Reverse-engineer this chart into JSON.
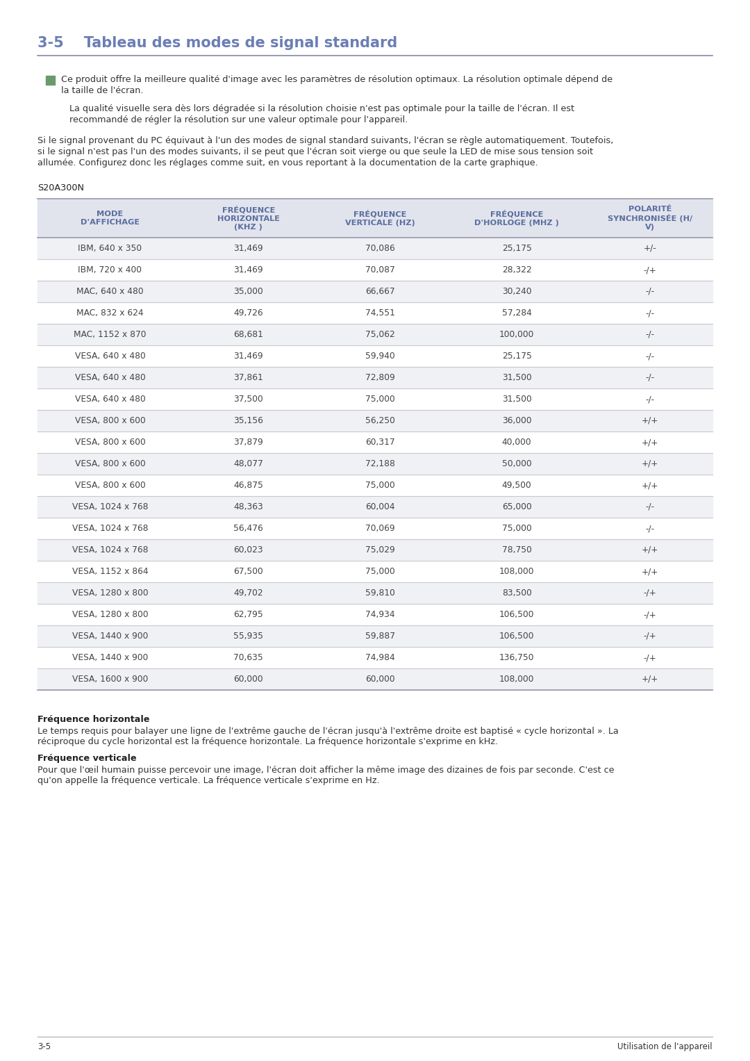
{
  "title_num": "3-5",
  "title_text": "Tableau des modes de signal standard",
  "title_color": "#6b7eb5",
  "bg_color": "#ffffff",
  "note_icon_color": "#6a9a6a",
  "note_text1a": "Ce produit offre la meilleure qualité d'image avec les paramètres de résolution optimaux. La résolution optimale dépend de",
  "note_text1b": "la taille de l'écran.",
  "note_text2a": "La qualité visuelle sera dès lors dégradée si la résolution choisie n'est pas optimale pour la taille de l'écran. Il est",
  "note_text2b": "recommandé de régler la résolution sur une valeur optimale pour l'appareil.",
  "para1": "Si le signal provenant du PC équivaut à l'un des modes de signal standard suivants, l'écran se règle automatiquement. Toutefois,",
  "para2": "si le signal n'est pas l'un des modes suivants, il se peut que l'écran soit vierge ou que seule la LED de mise sous tension soit",
  "para3": "allumée. Configurez donc les réglages comme suit, en vous reportant à la documentation de la carte graphique.",
  "model_label": "S20A300N",
  "col_headers": [
    "MODE\nD'AFFICHAGE",
    "FRÉQUENCE\nHORIZONTALE\n(KHZ )",
    "FRÉQUENCE\nVERTICALE (HZ)",
    "FRÉQUENCE\nD'HORLOGE (MHZ )",
    "POLARITÉ\nSYNCHRONISÉE (H/\nV)"
  ],
  "col_header_color": "#5a6ea0",
  "header_bg_color": "#e2e4ed",
  "row_bg_even": "#f0f1f5",
  "row_bg_odd": "#ffffff",
  "border_color_heavy": "#a0a0b0",
  "border_color_light": "#c8c8d0",
  "table_text_color": "#444444",
  "table_data": [
    [
      "IBM, 640 x 350",
      "31,469",
      "70,086",
      "25,175",
      "+/-"
    ],
    [
      "IBM, 720 x 400",
      "31,469",
      "70,087",
      "28,322",
      "-/+"
    ],
    [
      "MAC, 640 x 480",
      "35,000",
      "66,667",
      "30,240",
      "-/-"
    ],
    [
      "MAC, 832 x 624",
      "49,726",
      "74,551",
      "57,284",
      "-/-"
    ],
    [
      "MAC, 1152 x 870",
      "68,681",
      "75,062",
      "100,000",
      "-/-"
    ],
    [
      "VESA, 640 x 480",
      "31,469",
      "59,940",
      "25,175",
      "-/-"
    ],
    [
      "VESA, 640 x 480",
      "37,861",
      "72,809",
      "31,500",
      "-/-"
    ],
    [
      "VESA, 640 x 480",
      "37,500",
      "75,000",
      "31,500",
      "-/-"
    ],
    [
      "VESA, 800 x 600",
      "35,156",
      "56,250",
      "36,000",
      "+/+"
    ],
    [
      "VESA, 800 x 600",
      "37,879",
      "60,317",
      "40,000",
      "+/+"
    ],
    [
      "VESA, 800 x 600",
      "48,077",
      "72,188",
      "50,000",
      "+/+"
    ],
    [
      "VESA, 800 x 600",
      "46,875",
      "75,000",
      "49,500",
      "+/+"
    ],
    [
      "VESA, 1024 x 768",
      "48,363",
      "60,004",
      "65,000",
      "-/-"
    ],
    [
      "VESA, 1024 x 768",
      "56,476",
      "70,069",
      "75,000",
      "-/-"
    ],
    [
      "VESA, 1024 x 768",
      "60,023",
      "75,029",
      "78,750",
      "+/+"
    ],
    [
      "VESA, 1152 x 864",
      "67,500",
      "75,000",
      "108,000",
      "+/+"
    ],
    [
      "VESA, 1280 x 800",
      "49,702",
      "59,810",
      "83,500",
      "-/+"
    ],
    [
      "VESA, 1280 x 800",
      "62,795",
      "74,934",
      "106,500",
      "-/+"
    ],
    [
      "VESA, 1440 x 900",
      "55,935",
      "59,887",
      "106,500",
      "-/+"
    ],
    [
      "VESA, 1440 x 900",
      "70,635",
      "74,984",
      "136,750",
      "-/+"
    ],
    [
      "VESA, 1600 x 900",
      "60,000",
      "60,000",
      "108,000",
      "+/+"
    ]
  ],
  "footer_title1": "Fréquence horizontale",
  "footer_body1a": "Le temps requis pour balayer une ligne de l'extrême gauche de l'écran jusqu'à l'extrême droite est baptisé « cycle horizontal ». La",
  "footer_body1b": "réciproque du cycle horizontal est la fréquence horizontale. La fréquence horizontale s'exprime en kHz.",
  "footer_title2": "Fréquence verticale",
  "footer_body2a": "Pour que l'œil humain puisse percevoir une image, l'écran doit afficher la même image des dizaines de fois par seconde. C'est ce",
  "footer_body2b": "qu'on appelle la fréquence verticale. La fréquence verticale s'exprime en Hz.",
  "page_num": "3-5",
  "page_title_right": "Utilisation de l'appareil",
  "text_dark": "#222222",
  "text_mid": "#333333"
}
